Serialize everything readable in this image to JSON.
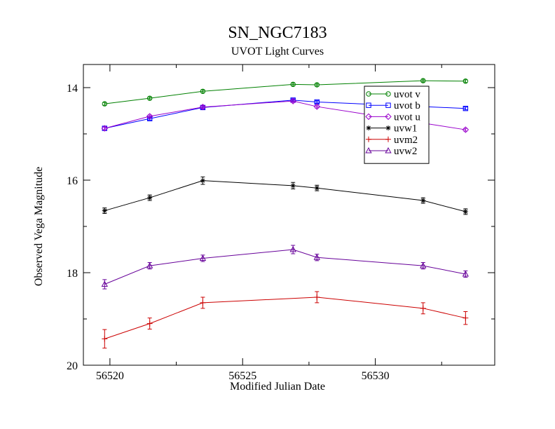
{
  "chart_data": {
    "type": "line",
    "title": "SN_NGC7183",
    "subtitle": "UVOT Light Curves",
    "xlabel": "Modified Julian Date",
    "ylabel": "Observed Vega Magnitude",
    "xlim": [
      56519.0,
      56534.5
    ],
    "ylim": [
      20,
      13.5
    ],
    "y_inverted": true,
    "x_major_ticks": [
      56520,
      56525,
      56530
    ],
    "x_minor_ticks": [
      56522.5,
      56527.5,
      56532.5
    ],
    "y_major_ticks": [
      14,
      16,
      18,
      20
    ],
    "y_minor_ticks": [
      15,
      17,
      19
    ],
    "x_tick_labels": [
      "56520",
      "56525",
      "56530"
    ],
    "y_tick_labels": [
      "14",
      "16",
      "18",
      "20"
    ],
    "legend_position": "top-right",
    "grid": false,
    "series": [
      {
        "name": "uvot v",
        "color": "#008000",
        "marker": "circle",
        "points": [
          {
            "x": 56519.8,
            "y": 14.35,
            "err": 0.03
          },
          {
            "x": 56521.5,
            "y": 14.23,
            "err": 0.03
          },
          {
            "x": 56523.5,
            "y": 14.08,
            "err": 0.03
          },
          {
            "x": 56526.9,
            "y": 13.93,
            "err": 0.03
          },
          {
            "x": 56527.8,
            "y": 13.94,
            "err": 0.03
          },
          {
            "x": 56531.8,
            "y": 13.85,
            "err": 0.03
          },
          {
            "x": 56533.4,
            "y": 13.86,
            "err": 0.03
          }
        ]
      },
      {
        "name": "uvot b",
        "color": "#0000ff",
        "marker": "square",
        "points": [
          {
            "x": 56519.8,
            "y": 14.88,
            "err": 0.03
          },
          {
            "x": 56521.5,
            "y": 14.67,
            "err": 0.03
          },
          {
            "x": 56523.5,
            "y": 14.43,
            "err": 0.03
          },
          {
            "x": 56526.9,
            "y": 14.27,
            "err": 0.03
          },
          {
            "x": 56527.8,
            "y": 14.31,
            "err": 0.03
          },
          {
            "x": 56533.4,
            "y": 14.45,
            "err": 0.03
          }
        ]
      },
      {
        "name": "uvot u",
        "color": "#9900cc",
        "marker": "diamond",
        "points": [
          {
            "x": 56519.8,
            "y": 14.88,
            "err": 0.03
          },
          {
            "x": 56521.5,
            "y": 14.62,
            "err": 0.03
          },
          {
            "x": 56523.5,
            "y": 14.42,
            "err": 0.03
          },
          {
            "x": 56526.9,
            "y": 14.29,
            "err": 0.03
          },
          {
            "x": 56527.8,
            "y": 14.41,
            "err": 0.03
          },
          {
            "x": 56533.4,
            "y": 14.91,
            "err": 0.03
          }
        ]
      },
      {
        "name": "uvw1",
        "color": "#000000",
        "marker": "star",
        "points": [
          {
            "x": 56519.8,
            "y": 16.66,
            "err": 0.06
          },
          {
            "x": 56521.5,
            "y": 16.38,
            "err": 0.06
          },
          {
            "x": 56523.5,
            "y": 16.01,
            "err": 0.08
          },
          {
            "x": 56526.9,
            "y": 16.12,
            "err": 0.07
          },
          {
            "x": 56527.8,
            "y": 16.17,
            "err": 0.06
          },
          {
            "x": 56531.8,
            "y": 16.44,
            "err": 0.06
          },
          {
            "x": 56533.4,
            "y": 16.68,
            "err": 0.06
          }
        ]
      },
      {
        "name": "uvm2",
        "color": "#cc0000",
        "marker": "plus",
        "points": [
          {
            "x": 56519.8,
            "y": 19.43,
            "err": 0.2
          },
          {
            "x": 56521.5,
            "y": 19.1,
            "err": 0.12
          },
          {
            "x": 56523.5,
            "y": 18.65,
            "err": 0.12
          },
          {
            "x": 56527.8,
            "y": 18.53,
            "err": 0.12
          },
          {
            "x": 56531.8,
            "y": 18.77,
            "err": 0.12
          },
          {
            "x": 56533.4,
            "y": 18.98,
            "err": 0.14
          }
        ]
      },
      {
        "name": "uvw2",
        "color": "#660099",
        "marker": "triangle",
        "points": [
          {
            "x": 56519.8,
            "y": 18.25,
            "err": 0.1
          },
          {
            "x": 56521.5,
            "y": 17.85,
            "err": 0.07
          },
          {
            "x": 56523.5,
            "y": 17.69,
            "err": 0.07
          },
          {
            "x": 56526.9,
            "y": 17.5,
            "err": 0.09
          },
          {
            "x": 56527.8,
            "y": 17.67,
            "err": 0.07
          },
          {
            "x": 56531.8,
            "y": 17.85,
            "err": 0.07
          },
          {
            "x": 56533.4,
            "y": 18.03,
            "err": 0.07
          }
        ]
      }
    ]
  }
}
